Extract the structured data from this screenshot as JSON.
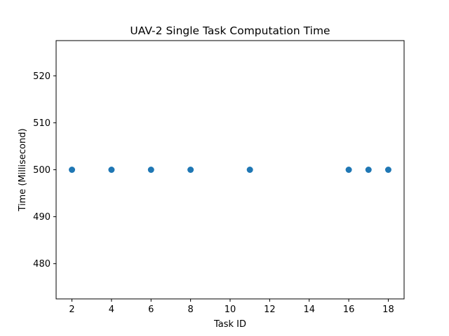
{
  "chart_data": {
    "type": "scatter",
    "title": "UAV-2 Single Task Computation Time",
    "xlabel": "Task ID",
    "ylabel": "Time (Millisecond)",
    "xlim": [
      1.2,
      18.8
    ],
    "ylim": [
      472.5,
      527.5
    ],
    "xticks": [
      2,
      4,
      6,
      8,
      10,
      12,
      14,
      16,
      18
    ],
    "yticks": [
      480,
      490,
      500,
      510,
      520
    ],
    "grid": false,
    "marker_color": "#1f77b4",
    "series": [
      {
        "x": [
          2,
          4,
          6,
          8,
          11,
          16,
          17,
          18
        ],
        "y": [
          500,
          500,
          500,
          500,
          500,
          500,
          500,
          500
        ]
      }
    ]
  }
}
